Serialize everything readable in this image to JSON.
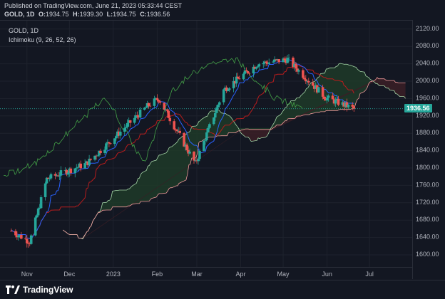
{
  "header": {
    "published": "Published on TradingView.com, June 21, 2023 05:33:44 CEST",
    "symbol": "GOLD, 1D",
    "ohlc": [
      {
        "key": "O:",
        "value": "1934.75"
      },
      {
        "key": "H:",
        "value": "1939.30"
      },
      {
        "key": "L:",
        "value": "1934.75"
      },
      {
        "key": "C:",
        "value": "1936.56"
      }
    ]
  },
  "legend": {
    "title": "GOLD, 1D",
    "indicator": "Ichimoku (9, 26, 52, 26)"
  },
  "price_badge": "1936.56",
  "footer": {
    "brand": "TradingView"
  },
  "colors": {
    "background": "#131722",
    "up": "#26a69a",
    "down": "#ef5350",
    "conversion": "#2962ff",
    "base": "#b71c1c",
    "lagging": "#43a047",
    "span_a": "#a5d6a7",
    "span_b": "#ef9a9a",
    "kumo_bull": "#1f3a28",
    "kumo_bear": "#3b1f26"
  },
  "chart_data": {
    "type": "candlestick",
    "title": "GOLD, 1D",
    "indicator": "Ichimoku (9, 26, 52, 26)",
    "ylim": [
      1580,
      2140
    ],
    "y_ticks": [
      "2120.00",
      "2080.00",
      "2040.00",
      "2000.00",
      "1960.00",
      "1920.00",
      "1880.00",
      "1840.00",
      "1800.00",
      "1760.00",
      "1720.00",
      "1680.00",
      "1640.00",
      "1600.00"
    ],
    "x_ticks": [
      "Nov",
      "Dec",
      "2023",
      "Feb",
      "Mar",
      "Apr",
      "May",
      "Jun",
      "Jul"
    ],
    "last_price": 1936.56,
    "ohlc_key_points": [
      {
        "date": "2022-10-21",
        "close": 1655
      },
      {
        "date": "2022-11-03",
        "close": 1630
      },
      {
        "date": "2022-11-15",
        "close": 1775
      },
      {
        "date": "2022-12-13",
        "close": 1810
      },
      {
        "date": "2023-01-26",
        "close": 1945
      },
      {
        "date": "2023-02-02",
        "close": 1960
      },
      {
        "date": "2023-02-28",
        "close": 1810
      },
      {
        "date": "2023-03-20",
        "close": 1980
      },
      {
        "date": "2023-04-13",
        "close": 2040
      },
      {
        "date": "2023-05-04",
        "close": 2050
      },
      {
        "date": "2023-05-31",
        "close": 1962
      },
      {
        "date": "2023-06-20",
        "close": 1936.56
      }
    ]
  }
}
